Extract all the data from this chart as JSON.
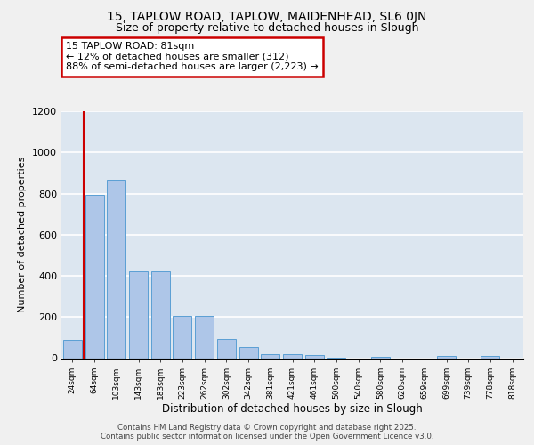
{
  "title_line1": "15, TAPLOW ROAD, TAPLOW, MAIDENHEAD, SL6 0JN",
  "title_line2": "Size of property relative to detached houses in Slough",
  "xlabel": "Distribution of detached houses by size in Slough",
  "ylabel": "Number of detached properties",
  "categories": [
    "24sqm",
    "64sqm",
    "103sqm",
    "143sqm",
    "183sqm",
    "223sqm",
    "262sqm",
    "302sqm",
    "342sqm",
    "381sqm",
    "421sqm",
    "461sqm",
    "500sqm",
    "540sqm",
    "580sqm",
    "620sqm",
    "659sqm",
    "699sqm",
    "739sqm",
    "778sqm",
    "818sqm"
  ],
  "values": [
    90,
    795,
    865,
    420,
    420,
    205,
    205,
    95,
    55,
    20,
    20,
    15,
    3,
    0,
    8,
    0,
    0,
    10,
    0,
    10,
    0
  ],
  "bar_color": "#aec6e8",
  "bar_edge_color": "#5a9fd4",
  "background_color": "#dce6f0",
  "grid_color": "#ffffff",
  "vline_color": "#cc0000",
  "annotation_text": "15 TAPLOW ROAD: 81sqm\n← 12% of detached houses are smaller (312)\n88% of semi-detached houses are larger (2,223) →",
  "annotation_box_color": "#ffffff",
  "annotation_box_edge": "#cc0000",
  "ylim": [
    0,
    1200
  ],
  "yticks": [
    0,
    200,
    400,
    600,
    800,
    1000,
    1200
  ],
  "footer_line1": "Contains HM Land Registry data © Crown copyright and database right 2025.",
  "footer_line2": "Contains public sector information licensed under the Open Government Licence v3.0.",
  "title_fontsize": 10,
  "subtitle_fontsize": 9,
  "fig_bg": "#f0f0f0"
}
